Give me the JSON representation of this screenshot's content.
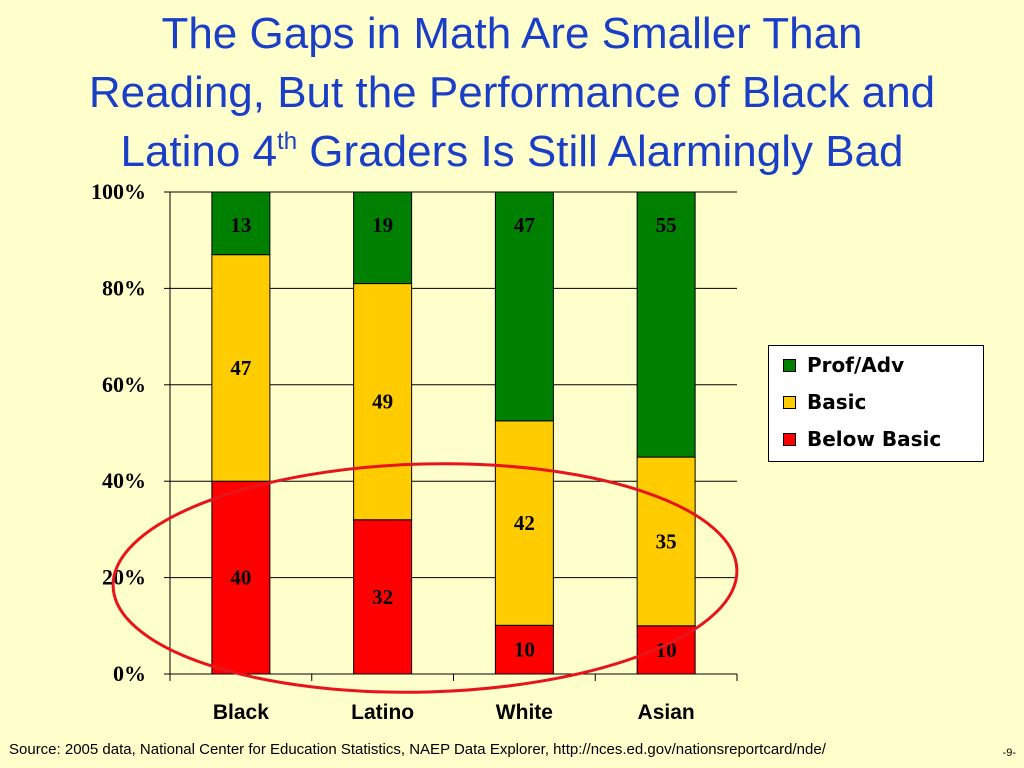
{
  "slide": {
    "title_line1": "The Gaps in Math Are Smaller Than",
    "title_line2": "Reading, But the Performance of Black and",
    "title_line3_before": "Latino 4",
    "title_line3_sup": "th",
    "title_line3_after": " Graders Is Still Alarmingly Bad",
    "source": "Source: 2005 data, National Center for Education Statistics, NAEP Data Explorer, http://nces.ed.gov/nationsreportcard/nde/",
    "page_number": "-9-",
    "title_color": "#1A3FC6",
    "background_color": "#FFFFCC",
    "highlight_ellipse_color": "#E8141C"
  },
  "chart_data": {
    "type": "bar",
    "stacked": true,
    "categories": [
      "Black",
      "Latino",
      "White",
      "Asian"
    ],
    "series": [
      {
        "name": "Below Basic",
        "color": "#FF0000",
        "values": [
          40,
          32,
          10,
          10
        ]
      },
      {
        "name": "Basic",
        "color": "#FFCC00",
        "values": [
          47,
          49,
          42,
          35
        ]
      },
      {
        "name": "Prof/Adv",
        "color": "#008000",
        "values": [
          13,
          19,
          47,
          55
        ]
      }
    ],
    "y_ticks": [
      "0%",
      "20%",
      "40%",
      "60%",
      "80%",
      "100%"
    ],
    "ylim": [
      0,
      100
    ],
    "grid": true,
    "legend_position": "right",
    "legend_order": [
      "Prof/Adv",
      "Basic",
      "Below Basic"
    ],
    "annotation": "red ellipse circling the Below Basic and Basic segments"
  }
}
